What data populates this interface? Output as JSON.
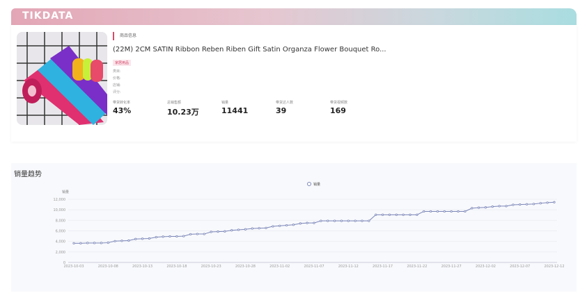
{
  "brand": {
    "logo": "TIKDATA"
  },
  "product": {
    "section_label": "商品信息",
    "title": "(22M) 2CM SATIN Ribbon Reben Riben Gift Satin Organza Flower Bouquet Ro...",
    "tag": "家居用品",
    "info_lines": [
      "类目:",
      "价格:",
      "店铺:",
      "评分:"
    ],
    "stats": [
      {
        "label": "带货转化率",
        "value": "43%"
      },
      {
        "label": "总销售额",
        "value": "10.23万"
      },
      {
        "label": "销量",
        "value": "11441"
      },
      {
        "label": "带货达人数",
        "value": "39"
      },
      {
        "label": "带货视频数",
        "value": "169"
      }
    ]
  },
  "chart_data": {
    "type": "line",
    "title": "销量趋势",
    "legend": [
      "销量"
    ],
    "ylabel": "销量",
    "ylim": [
      0,
      12000
    ],
    "yticks": [
      "0",
      "2,000",
      "4,000",
      "6,000",
      "8,000",
      "10,000",
      "12,000"
    ],
    "xticks": [
      "2023-10-03",
      "2023-10-08",
      "2023-10-13",
      "2023-10-18",
      "2023-10-23",
      "2023-10-28",
      "2023-11-02",
      "2023-11-07",
      "2023-11-12",
      "2023-11-17",
      "2023-11-22",
      "2023-11-27",
      "2023-12-02",
      "2023-12-07",
      "2023-12-12"
    ],
    "series": [
      {
        "name": "销量",
        "color": "#7b86b8",
        "values": [
          3650,
          3650,
          3700,
          3700,
          3700,
          3750,
          4050,
          4100,
          4150,
          4450,
          4500,
          4550,
          4800,
          4900,
          4950,
          4950,
          5000,
          5350,
          5400,
          5400,
          5800,
          5850,
          5900,
          6100,
          6200,
          6300,
          6450,
          6500,
          6550,
          6850,
          6950,
          7050,
          7150,
          7400,
          7500,
          7500,
          7900,
          7900,
          7900,
          7900,
          7900,
          7900,
          7900,
          7900,
          9050,
          9050,
          9050,
          9050,
          9050,
          9050,
          9050,
          9700,
          9700,
          9700,
          9700,
          9700,
          9700,
          9700,
          10300,
          10400,
          10450,
          10600,
          10700,
          10700,
          10950,
          11000,
          11050,
          11100,
          11250,
          11350,
          11441
        ]
      }
    ],
    "grid": true,
    "legend_position": "top-center"
  }
}
